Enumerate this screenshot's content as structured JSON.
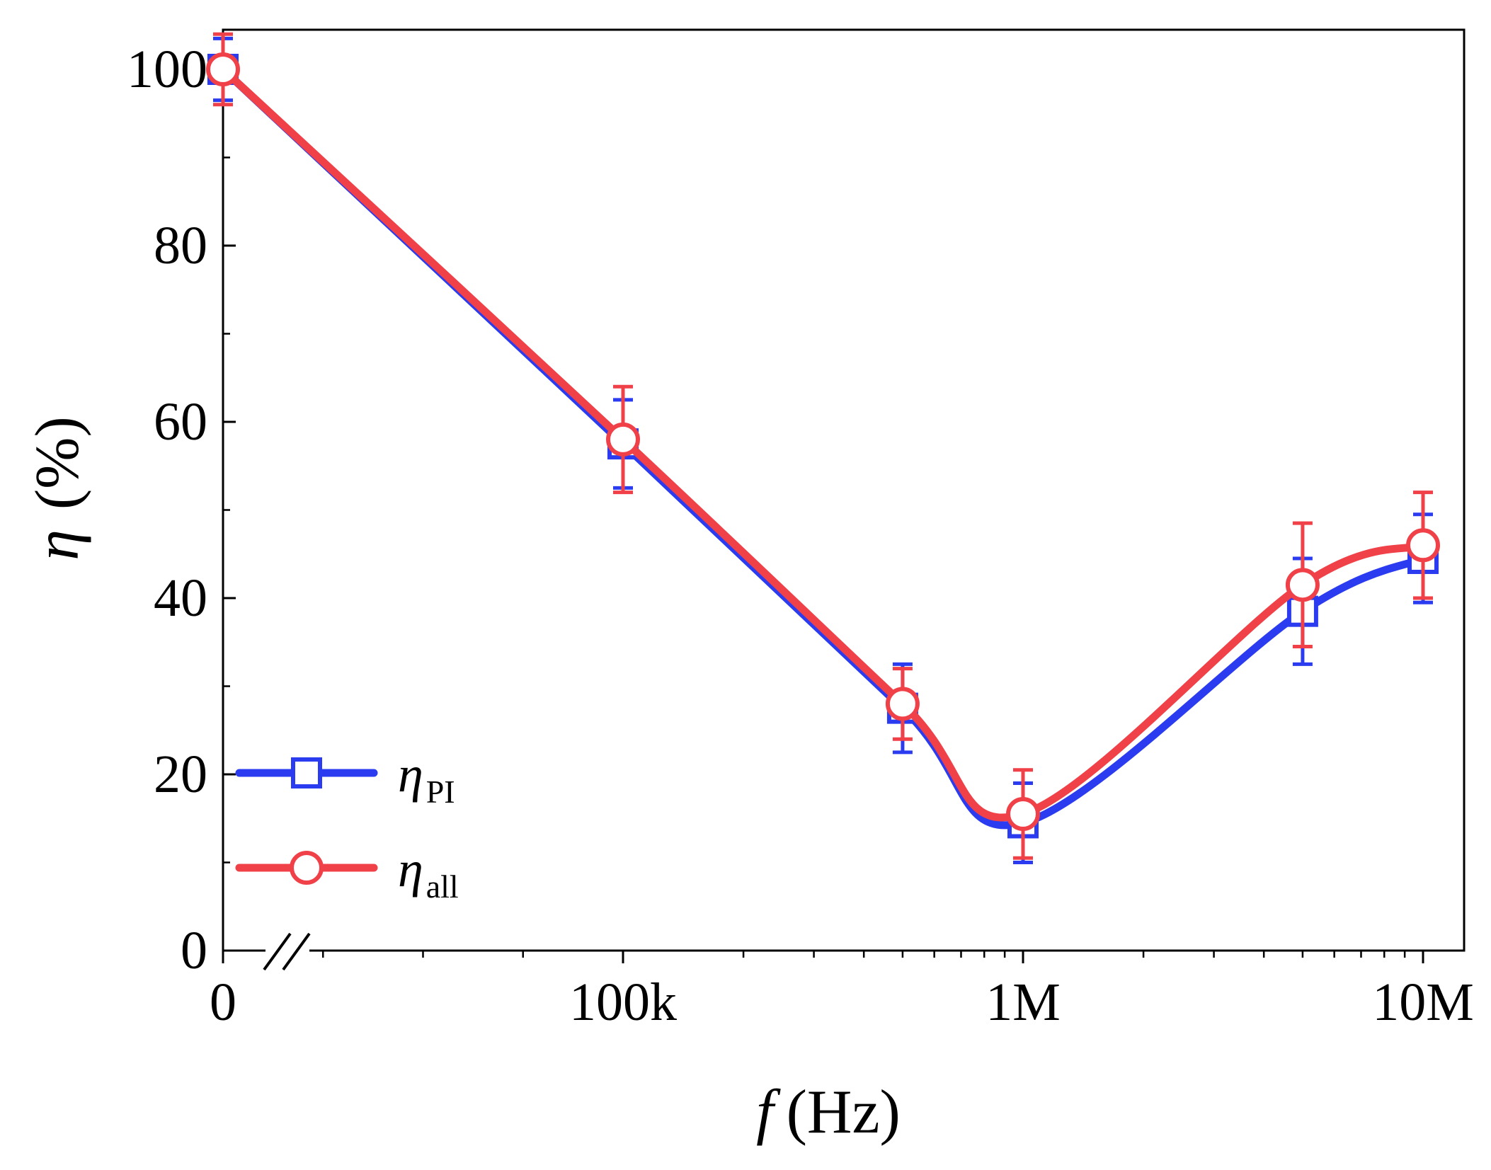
{
  "chart_data": {
    "type": "line",
    "title": "",
    "xlabel": {
      "symbol": "f",
      "unit": "(Hz)"
    },
    "ylabel": {
      "symbol": "η",
      "unit": "(%)"
    },
    "x_scale": "log with axis break at 0",
    "x_ticks": [
      {
        "value": 0,
        "label": "0"
      },
      {
        "value": 100000,
        "label": "100k"
      },
      {
        "value": 1000000,
        "label": "1M"
      },
      {
        "value": 10000000,
        "label": "10M"
      }
    ],
    "y_ticks": [
      0,
      20,
      40,
      60,
      80,
      100
    ],
    "ylim": [
      0,
      100
    ],
    "x": [
      0,
      100000,
      500000,
      1000000,
      5000000,
      10000000
    ],
    "series": [
      {
        "name": "η_PI",
        "symbol": "η",
        "subscript": "PI",
        "marker": "square",
        "color": "#2b3cf0",
        "values": [
          100,
          57.5,
          27.5,
          14.5,
          38.5,
          44.5
        ],
        "error": [
          3.5,
          5,
          5,
          4.5,
          6,
          5
        ]
      },
      {
        "name": "η_all",
        "symbol": "η",
        "subscript": "all",
        "marker": "circle",
        "color": "#f04048",
        "values": [
          100,
          58,
          28,
          15.5,
          41.5,
          46
        ],
        "error": [
          4,
          6,
          4,
          5,
          7,
          6
        ]
      }
    ],
    "legend_position": "bottom-left",
    "grid": false
  }
}
